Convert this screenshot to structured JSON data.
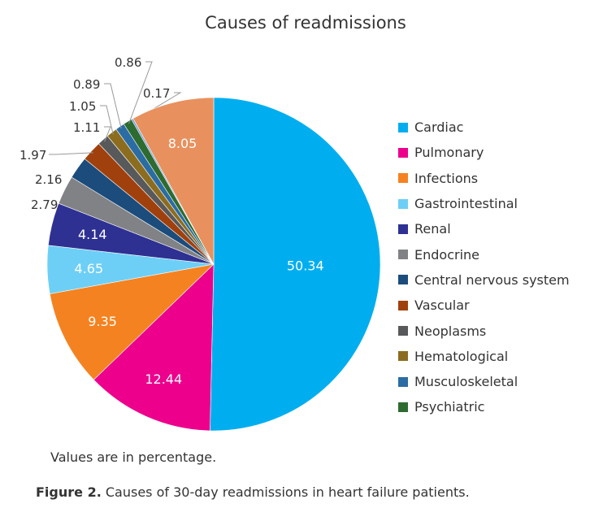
{
  "chart_data": {
    "type": "pie",
    "title": "Causes of readmissions",
    "start": "top",
    "direction": "clockwise",
    "slices": [
      {
        "name": "Cardiac",
        "value": 50.34,
        "label": "50.34",
        "color": "#00aeef",
        "legend": true
      },
      {
        "name": "Pulmonary",
        "value": 12.44,
        "label": "12.44",
        "color": "#ec008c",
        "legend": true
      },
      {
        "name": "Infections",
        "value": 9.35,
        "label": "9.35",
        "color": "#f58220",
        "legend": true
      },
      {
        "name": "Gastrointestinal",
        "value": 4.65,
        "label": "4.65",
        "color": "#6dcff6",
        "legend": true
      },
      {
        "name": "Renal",
        "value": 4.14,
        "label": "4.14",
        "color": "#2e3192",
        "legend": true
      },
      {
        "name": "Endocrine",
        "value": 2.79,
        "label": "2.79",
        "color": "#808285",
        "legend": true
      },
      {
        "name": "Central nervous system",
        "value": 2.16,
        "label": "2.16",
        "color": "#1c4c7c",
        "legend": true
      },
      {
        "name": "Vascular",
        "value": 1.97,
        "label": "1.97",
        "color": "#a0410d",
        "legend": true
      },
      {
        "name": "Neoplasms",
        "value": 1.11,
        "label": "1.11",
        "color": "#58595b",
        "legend": true
      },
      {
        "name": "Hematological",
        "value": 1.05,
        "label": "1.05",
        "color": "#8c6d1f",
        "legend": true
      },
      {
        "name": "Musculoskeletal",
        "value": 0.89,
        "label": "0.89",
        "color": "#2b6ca3",
        "legend": true
      },
      {
        "name": "Psychiatric",
        "value": 0.86,
        "label": "0.86",
        "color": "#2e6b30",
        "legend": true
      },
      {
        "name": "",
        "value": 0.17,
        "label": "0.17",
        "color": "#6a9bd8",
        "legend": false
      },
      {
        "name": "",
        "value": 8.05,
        "label": "8.05",
        "color": "#e8915f",
        "legend": false
      }
    ],
    "legend_placement": "right"
  },
  "note": "Values are in percentage.",
  "caption": {
    "label": "Figure 2.",
    "text": " Causes of 30-day readmissions in heart failure patients."
  }
}
